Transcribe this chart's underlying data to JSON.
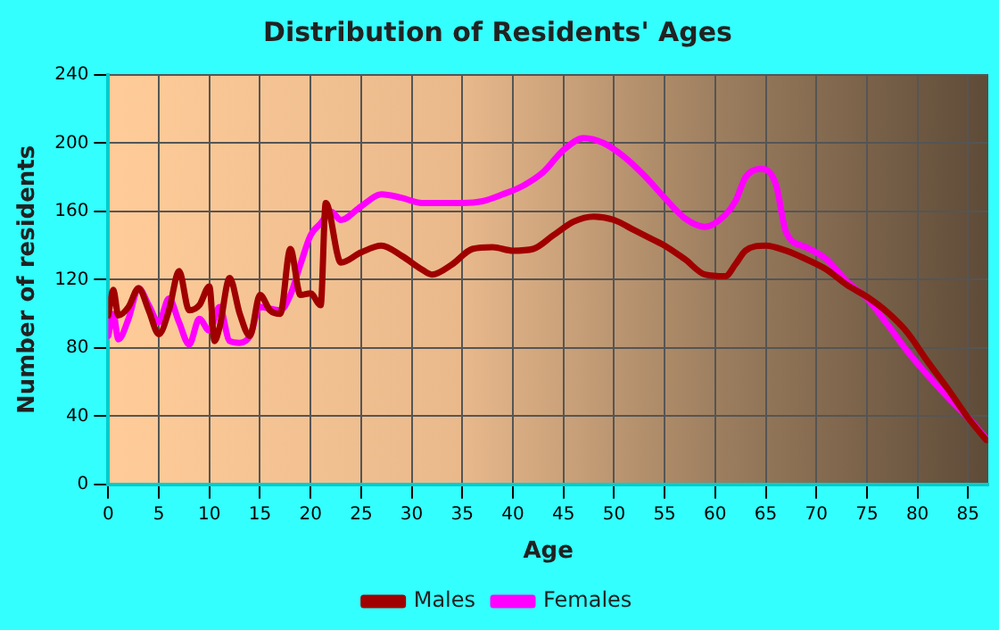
{
  "chart_data": {
    "type": "line",
    "title": "Distribution of Residents' Ages",
    "xlabel": "Age",
    "ylabel": "Number of residents",
    "xlim": [
      0,
      87
    ],
    "xticks": [
      0,
      5,
      10,
      15,
      20,
      25,
      30,
      35,
      40,
      45,
      50,
      55,
      60,
      65,
      70,
      75,
      80,
      85
    ],
    "ylim": [
      0,
      240
    ],
    "yticks": [
      0,
      40,
      80,
      120,
      160,
      200,
      240
    ],
    "grid": true,
    "legend": "bottom",
    "marker": "none",
    "line_style": "solid",
    "series": [
      {
        "name": "Males",
        "color": "#a00000",
        "x": [
          0,
          0.5,
          1,
          2,
          3,
          4,
          5,
          6,
          7,
          8,
          9,
          10,
          10.5,
          11,
          12,
          13,
          14,
          15,
          16,
          17,
          18,
          19,
          20,
          21,
          21.5,
          23,
          25,
          27,
          29,
          31,
          32,
          34,
          36,
          38,
          40,
          42,
          44,
          46,
          48,
          50,
          52,
          54,
          55,
          57,
          59,
          61,
          62,
          63,
          65,
          67,
          69,
          71,
          73,
          75,
          77,
          79,
          81,
          83,
          85,
          86.8
        ],
        "values": [
          99,
          114,
          99,
          104,
          115,
          102,
          88,
          102,
          125,
          102,
          105,
          116,
          84,
          92,
          121,
          100,
          87,
          111,
          102,
          100,
          138,
          111,
          112,
          105,
          165,
          130,
          136,
          140,
          134,
          126,
          123,
          129,
          138,
          139,
          137,
          138,
          146,
          154,
          157,
          155,
          149,
          143,
          140,
          132,
          123,
          122,
          129,
          137,
          140,
          137,
          132,
          126,
          117,
          110,
          101,
          89,
          72,
          56,
          39,
          26
        ]
      },
      {
        "name": "Females",
        "color": "#ff00ff",
        "x": [
          0,
          0.5,
          1,
          2,
          3,
          4,
          5,
          6,
          7,
          8,
          9,
          10,
          11,
          12,
          13,
          14,
          15,
          16,
          17,
          18,
          19,
          20,
          21,
          22,
          23,
          25,
          27,
          29,
          31,
          33,
          35,
          37,
          39,
          41,
          43,
          45,
          47,
          49,
          51,
          53,
          55,
          57,
          59,
          61,
          62,
          63,
          64.5,
          66,
          67,
          69,
          71,
          73,
          75,
          77,
          79,
          81,
          83,
          85,
          86.8
        ],
        "values": [
          87,
          100,
          85,
          97,
          115,
          105,
          95,
          109,
          95,
          82,
          97,
          90,
          104,
          84,
          83,
          87,
          104,
          103,
          102,
          111,
          129,
          146,
          153,
          160,
          155,
          163,
          170,
          168,
          165,
          165,
          165,
          166,
          170,
          175,
          183,
          196,
          203,
          200,
          192,
          181,
          168,
          156,
          151,
          158,
          166,
          180,
          185,
          176,
          148,
          139,
          132,
          119,
          109,
          94,
          78,
          64,
          51,
          39,
          27
        ]
      }
    ]
  }
}
